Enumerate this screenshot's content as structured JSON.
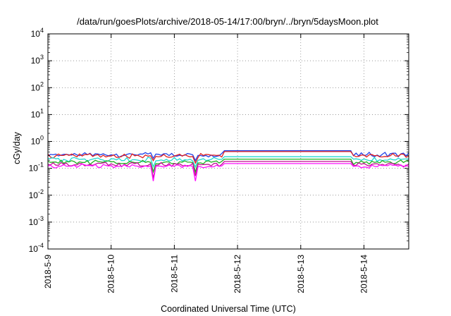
{
  "chart_data": {
    "type": "line",
    "title": "/data/run/goesPlots/archive/2018-05-14/17:00/bryn/../bryn/5daysMoon.plot",
    "xlabel": "Coordinated Universal Time (UTC)",
    "ylabel": "cGy/day",
    "yscale": "log",
    "ylim": [
      0.0001,
      10000
    ],
    "xlim_days": [
      "2018-05-09T00:00",
      "2018-05-14T17:00"
    ],
    "x_ticks": [
      "2018-5-9",
      "2018-5-10",
      "2018-5-11",
      "2018-5-12",
      "2018-5-13",
      "2018-5-14"
    ],
    "y_ticks": [
      {
        "base": "10",
        "exp": "-4"
      },
      {
        "base": "10",
        "exp": "-3"
      },
      {
        "base": "10",
        "exp": "-2"
      },
      {
        "base": "10",
        "exp": "-1"
      },
      {
        "base": "10",
        "exp": "0"
      },
      {
        "base": "10",
        "exp": "1"
      },
      {
        "base": "10",
        "exp": "2"
      },
      {
        "base": "10",
        "exp": "3"
      },
      {
        "base": "10",
        "exp": "4"
      }
    ],
    "grid": true,
    "legend": "none",
    "data_gap": {
      "start": "2018-05-11T19:00",
      "end": "2018-05-13T19:00"
    },
    "series": [
      {
        "color": "#2040e8",
        "level": 0.32,
        "gap_level": 0.45
      },
      {
        "color": "#e02020",
        "level": 0.29,
        "gap_level": 0.42
      },
      {
        "color": "#20d8d0",
        "level": 0.21,
        "gap_level": 0.27
      },
      {
        "color": "#20b020",
        "level": 0.17,
        "gap_level": 0.22
      },
      {
        "color": "#c01090",
        "level": 0.14,
        "gap_level": 0.18
      },
      {
        "color": "#ff10ff",
        "level": 0.12,
        "gap_level": 0.15
      }
    ]
  }
}
